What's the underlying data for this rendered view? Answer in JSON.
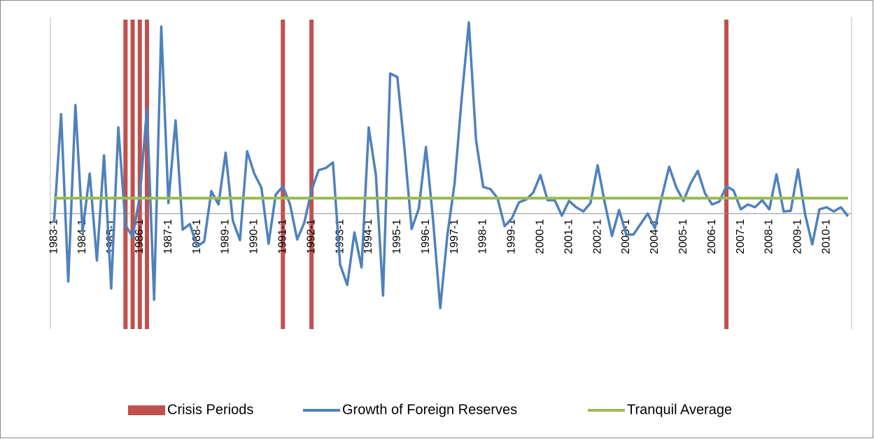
{
  "chart_data": {
    "type": "line",
    "categories": [
      "1983-1",
      null,
      null,
      null,
      "1984-1",
      null,
      null,
      null,
      "1985-1",
      null,
      null,
      null,
      "1986-1",
      null,
      null,
      null,
      "1987-1",
      null,
      null,
      null,
      "1988-1",
      null,
      null,
      null,
      "1989-1",
      null,
      null,
      null,
      "1990-1",
      null,
      null,
      null,
      "1991-1",
      null,
      null,
      null,
      "1992-1",
      null,
      null,
      null,
      "1993-1",
      null,
      null,
      null,
      "1994-1",
      null,
      null,
      null,
      "1995-1",
      null,
      null,
      null,
      "1996-1",
      null,
      null,
      null,
      "1997-1",
      null,
      null,
      null,
      "1998-1",
      null,
      null,
      null,
      "1999-1",
      null,
      null,
      null,
      "2000-1",
      null,
      null,
      null,
      "2001-1",
      null,
      null,
      null,
      "2002-1",
      null,
      null,
      null,
      "2003-1",
      null,
      null,
      null,
      "2004-1",
      null,
      null,
      null,
      "2005-1",
      null,
      null,
      null,
      "2006-1",
      null,
      null,
      null,
      "2007-1",
      null,
      null,
      null,
      "2008-1",
      null,
      null,
      null,
      "2009-1",
      null,
      null,
      null,
      "2010-1",
      null,
      null,
      null
    ],
    "series": [
      {
        "name": "Crisis Periods",
        "type": "bar",
        "axis": "y2",
        "color": "#c0504d",
        "values": [
          null,
          null,
          null,
          null,
          null,
          null,
          null,
          null,
          null,
          null,
          1,
          1,
          1,
          1,
          null,
          null,
          null,
          null,
          null,
          null,
          null,
          null,
          null,
          null,
          null,
          null,
          null,
          null,
          null,
          null,
          null,
          null,
          1,
          null,
          null,
          null,
          1,
          null,
          null,
          null,
          null,
          null,
          null,
          null,
          null,
          null,
          null,
          null,
          null,
          null,
          null,
          null,
          null,
          null,
          null,
          null,
          null,
          null,
          null,
          null,
          null,
          null,
          null,
          null,
          null,
          null,
          null,
          null,
          null,
          null,
          null,
          null,
          null,
          null,
          null,
          null,
          null,
          null,
          null,
          null,
          null,
          null,
          null,
          null,
          null,
          null,
          null,
          null,
          null,
          null,
          null,
          null,
          null,
          null,
          1,
          null,
          null,
          null,
          null,
          null,
          null,
          null,
          null,
          null,
          null,
          null,
          null,
          null,
          null,
          null,
          null,
          null
        ]
      },
      {
        "name": "Growth of Foreign Reserves",
        "type": "line",
        "color": "#4f81bd",
        "values": [
          -0.13,
          1.42,
          -0.97,
          1.55,
          -0.25,
          0.57,
          -0.67,
          0.83,
          -1.07,
          1.23,
          -0.17,
          -0.33,
          0.25,
          1.5,
          -1.23,
          2.67,
          0.15,
          1.33,
          -0.23,
          -0.15,
          -0.47,
          -0.4,
          0.32,
          0.13,
          0.87,
          -0.1,
          -0.38,
          0.89,
          0.57,
          0.37,
          -0.43,
          0.27,
          0.39,
          0.13,
          -0.37,
          -0.13,
          0.33,
          0.62,
          0.65,
          0.73,
          -0.73,
          -1.02,
          -0.27,
          -0.77,
          1.23,
          0.55,
          -1.17,
          2.0,
          1.95,
          0.93,
          -0.22,
          0.07,
          0.95,
          -0.1,
          -1.35,
          -0.3,
          0.43,
          1.65,
          2.73,
          1.05,
          0.38,
          0.35,
          0.22,
          -0.18,
          -0.07,
          0.16,
          0.2,
          0.3,
          0.55,
          0.19,
          0.19,
          -0.03,
          0.18,
          0.09,
          0.03,
          0.15,
          0.69,
          0.15,
          -0.32,
          0.05,
          -0.3,
          -0.3,
          -0.15,
          0,
          -0.21,
          0.25,
          0.67,
          0.37,
          0.18,
          0.43,
          0.61,
          0.29,
          0.13,
          0.17,
          0.39,
          0.33,
          0.06,
          0.13,
          0.09,
          0.19,
          0.06,
          0.56,
          0.03,
          0.04,
          0.63,
          -0.01,
          -0.44,
          0.06,
          0.09,
          0.03,
          0.09,
          -0.04
        ]
      },
      {
        "name": "Tranquil Average",
        "type": "line",
        "color": "#9bbb59",
        "values": [
          0.22,
          0.22,
          0.22,
          0.22,
          0.22,
          0.22,
          0.22,
          0.22,
          0.22,
          0.22,
          0.22,
          0.22,
          0.22,
          0.22,
          0.22,
          0.22,
          0.22,
          0.22,
          0.22,
          0.22,
          0.22,
          0.22,
          0.22,
          0.22,
          0.22,
          0.22,
          0.22,
          0.22,
          0.22,
          0.22,
          0.22,
          0.22,
          0.22,
          0.22,
          0.22,
          0.22,
          0.22,
          0.22,
          0.22,
          0.22,
          0.22,
          0.22,
          0.22,
          0.22,
          0.22,
          0.22,
          0.22,
          0.22,
          0.22,
          0.22,
          0.22,
          0.22,
          0.22,
          0.22,
          0.22,
          0.22,
          0.22,
          0.22,
          0.22,
          0.22,
          0.22,
          0.22,
          0.22,
          0.22,
          0.22,
          0.22,
          0.22,
          0.22,
          0.22,
          0.22,
          0.22,
          0.22,
          0.22,
          0.22,
          0.22,
          0.22,
          0.22,
          0.22,
          0.22,
          0.22,
          0.22,
          0.22,
          0.22,
          0.22,
          0.22,
          0.22,
          0.22,
          0.22,
          0.22,
          0.22,
          0.22,
          0.22,
          0.22,
          0.22,
          0.22,
          0.22,
          0.22,
          0.22,
          0.22,
          0.22,
          0.22,
          0.22,
          0.22,
          0.22,
          0.22,
          0.22,
          0.22,
          0.22,
          0.22,
          0.22,
          0.22,
          0.22
        ]
      }
    ],
    "ylim": [
      -1.65,
      2.77
    ],
    "y2lim": [
      0,
      1
    ],
    "legend": "bottom"
  }
}
